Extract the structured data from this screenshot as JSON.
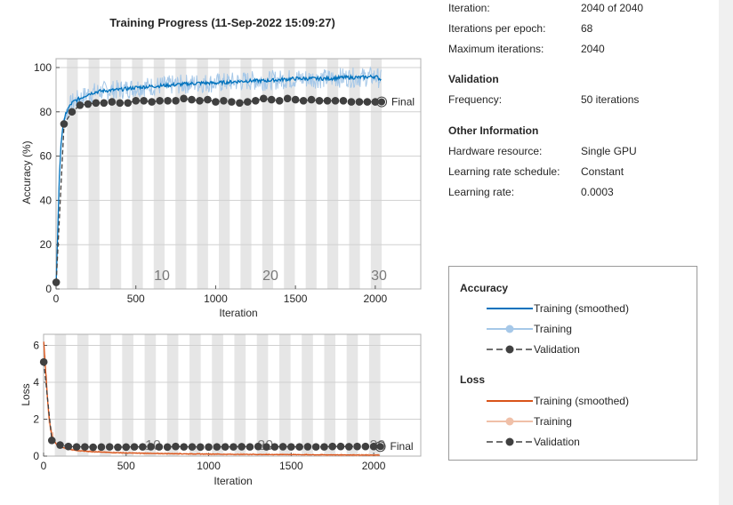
{
  "info": {
    "rows": [
      {
        "label": "Iteration:",
        "value": "2040 of 2040"
      },
      {
        "label": "Iterations per epoch:",
        "value": "68"
      },
      {
        "label": "Maximum iterations:",
        "value": "2040"
      }
    ],
    "validation_title": "Validation",
    "validation_rows": [
      {
        "label": "Frequency:",
        "value": "50 iterations"
      }
    ],
    "other_title": "Other Information",
    "other_rows": [
      {
        "label": "Hardware resource:",
        "value": "Single GPU"
      },
      {
        "label": "Learning rate schedule:",
        "value": "Constant"
      },
      {
        "label": "Learning rate:",
        "value": "0.0003"
      }
    ]
  },
  "legend": {
    "accuracy_title": "Accuracy",
    "accuracy_items": [
      "Training (smoothed)",
      "Training",
      "Validation"
    ],
    "loss_title": "Loss",
    "loss_items": [
      "Training (smoothed)",
      "Training",
      "Validation"
    ]
  },
  "colors": {
    "accuracy_smoothed": "#0072bd",
    "accuracy_raw": "#a6c8e8",
    "loss_smoothed": "#d95319",
    "loss_raw": "#f0c0a8",
    "validation": "#404040",
    "epoch_band": "#e6e6e6"
  },
  "chart_data": [
    {
      "type": "line",
      "title": "Training Progress (11-Sep-2022 15:09:27)",
      "xlabel": "Iteration",
      "ylabel": "Accuracy (%)",
      "xlim": [
        0,
        2285
      ],
      "ylim": [
        0,
        104
      ],
      "xticks": [
        0,
        500,
        1000,
        1500,
        2000
      ],
      "yticks": [
        0,
        20,
        40,
        60,
        80,
        100
      ],
      "epoch_labels": [
        {
          "epoch": "10",
          "x": 663
        },
        {
          "epoch": "20",
          "x": 1343
        },
        {
          "epoch": "30",
          "x": 2023
        }
      ],
      "final_label": "Final",
      "grid": true,
      "series": [
        {
          "name": "Training (smoothed)",
          "x": [
            1,
            10,
            20,
            30,
            40,
            50,
            60,
            80,
            100,
            120,
            150,
            200,
            250,
            300,
            400,
            500,
            600,
            700,
            800,
            900,
            1000,
            1100,
            1200,
            1300,
            1400,
            1500,
            1600,
            1700,
            1800,
            1900,
            2000,
            2040
          ],
          "y": [
            3,
            25,
            50,
            64,
            72,
            76,
            79,
            82,
            84,
            85,
            86,
            88,
            89,
            89.5,
            90,
            91,
            91.5,
            92,
            92.5,
            93,
            93,
            93.5,
            94,
            94,
            94.5,
            95,
            95,
            95,
            95.5,
            95.5,
            96,
            94.5
          ]
        },
        {
          "name": "Validation",
          "x": [
            1,
            50,
            100,
            150,
            200,
            250,
            300,
            350,
            400,
            450,
            500,
            550,
            600,
            650,
            700,
            750,
            800,
            850,
            900,
            950,
            1000,
            1050,
            1100,
            1150,
            1200,
            1250,
            1300,
            1350,
            1400,
            1450,
            1500,
            1550,
            1600,
            1650,
            1700,
            1750,
            1800,
            1850,
            1900,
            1950,
            2000,
            2040
          ],
          "y": [
            3,
            74.5,
            80,
            83,
            83.5,
            84,
            84,
            84.5,
            84,
            84,
            85,
            85,
            84.5,
            85,
            85,
            85,
            86,
            85.5,
            85,
            85.5,
            84.5,
            85,
            84.5,
            84,
            84.5,
            85,
            86,
            85.5,
            85,
            86,
            85.5,
            85,
            85.5,
            85,
            85,
            85,
            85,
            84.5,
            84.5,
            84.5,
            84.5,
            84.5
          ]
        }
      ]
    },
    {
      "type": "line",
      "xlabel": "Iteration",
      "ylabel": "Loss",
      "xlim": [
        0,
        2285
      ],
      "ylim": [
        0,
        6.6
      ],
      "xticks": [
        0,
        500,
        1000,
        1500,
        2000
      ],
      "yticks": [
        0,
        2,
        4,
        6
      ],
      "epoch_labels": [
        {
          "epoch": "10",
          "x": 663
        },
        {
          "epoch": "20",
          "x": 1343
        },
        {
          "epoch": "30",
          "x": 2023
        }
      ],
      "final_label": "Final",
      "grid": true,
      "series": [
        {
          "name": "Training (smoothed)",
          "x": [
            1,
            10,
            20,
            30,
            40,
            50,
            60,
            80,
            100,
            150,
            200,
            300,
            400,
            500,
            700,
            900,
            1100,
            1300,
            1500,
            1700,
            1900,
            2040
          ],
          "y": [
            6.2,
            5.0,
            3.6,
            2.4,
            1.6,
            1.1,
            0.85,
            0.62,
            0.5,
            0.38,
            0.3,
            0.24,
            0.2,
            0.17,
            0.14,
            0.12,
            0.1,
            0.09,
            0.08,
            0.07,
            0.06,
            0.05
          ]
        },
        {
          "name": "Validation",
          "x": [
            1,
            50,
            100,
            150,
            200,
            250,
            300,
            350,
            400,
            450,
            500,
            550,
            600,
            650,
            700,
            750,
            800,
            850,
            900,
            950,
            1000,
            1050,
            1100,
            1150,
            1200,
            1250,
            1300,
            1350,
            1400,
            1450,
            1500,
            1550,
            1600,
            1650,
            1700,
            1750,
            1800,
            1850,
            1900,
            1950,
            2000,
            2040
          ],
          "y": [
            5.1,
            0.85,
            0.6,
            0.52,
            0.5,
            0.5,
            0.48,
            0.49,
            0.5,
            0.48,
            0.49,
            0.5,
            0.5,
            0.51,
            0.5,
            0.49,
            0.52,
            0.5,
            0.5,
            0.49,
            0.49,
            0.5,
            0.5,
            0.5,
            0.51,
            0.5,
            0.52,
            0.5,
            0.5,
            0.51,
            0.5,
            0.5,
            0.51,
            0.5,
            0.5,
            0.52,
            0.52,
            0.51,
            0.52,
            0.52,
            0.52,
            0.52
          ]
        }
      ]
    }
  ]
}
